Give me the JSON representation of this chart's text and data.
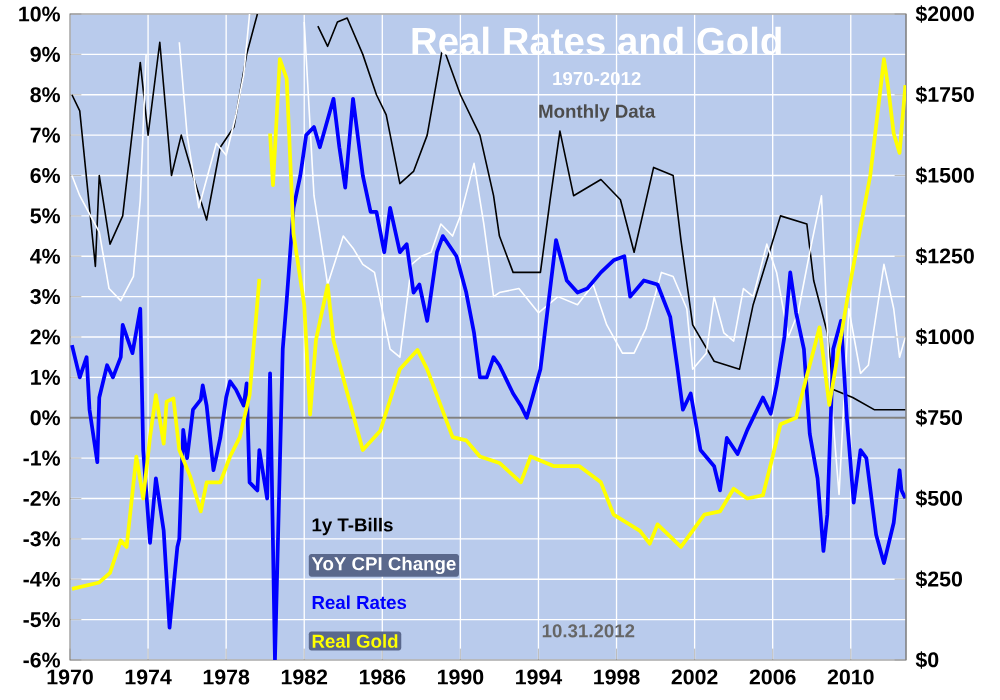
{
  "chart_data": {
    "type": "line",
    "title": "Real Rates and Gold",
    "subtitle": "1970-2012",
    "annotations": [
      "Monthly Data",
      "10.31.2012"
    ],
    "xlim": [
      1970,
      2012.83
    ],
    "xticks": [
      1970,
      1974,
      1978,
      1982,
      1986,
      1990,
      1994,
      1998,
      2002,
      2006,
      2010
    ],
    "ylim": [
      -6,
      10
    ],
    "yticks": [
      {
        "value": -6,
        "label": "-6%"
      },
      {
        "value": -5,
        "label": "-5%"
      },
      {
        "value": -4,
        "label": "-4%"
      },
      {
        "value": -3,
        "label": "-3%"
      },
      {
        "value": -2,
        "label": "-2%"
      },
      {
        "value": -1,
        "label": "-1%"
      },
      {
        "value": 0,
        "label": "0%"
      },
      {
        "value": 1,
        "label": "1%"
      },
      {
        "value": 2,
        "label": "2%"
      },
      {
        "value": 3,
        "label": "3%"
      },
      {
        "value": 4,
        "label": "4%"
      },
      {
        "value": 5,
        "label": "5%"
      },
      {
        "value": 6,
        "label": "6%"
      },
      {
        "value": 7,
        "label": "7%"
      },
      {
        "value": 8,
        "label": "8%"
      },
      {
        "value": 9,
        "label": "9%"
      },
      {
        "value": 10,
        "label": "10%"
      }
    ],
    "y2lim": [
      0,
      2000
    ],
    "y2ticks": [
      {
        "value": 0,
        "label": "$0"
      },
      {
        "value": 250,
        "label": "$250"
      },
      {
        "value": 500,
        "label": "$500"
      },
      {
        "value": 750,
        "label": "$750"
      },
      {
        "value": 1000,
        "label": "$1000"
      },
      {
        "value": 1250,
        "label": "$1250"
      },
      {
        "value": 1500,
        "label": "$1500"
      },
      {
        "value": 1750,
        "label": "$1750"
      },
      {
        "value": 2000,
        "label": "$2000"
      }
    ],
    "grid": true,
    "legend": "bottom left",
    "ref_lines": [
      {
        "axis": "y",
        "value": 0,
        "color": "#808080"
      }
    ],
    "series": [
      {
        "name": "1y T-Bills",
        "color": "#000000",
        "x": [
          1970.1,
          1970.5,
          1971.3,
          1971.5,
          1972.05,
          1972.7,
          1973.6,
          1974.0,
          1974.6,
          1975.2,
          1975.7,
          1976.3,
          1977.0,
          1977.7,
          1978.4,
          1979.05,
          1979.6,
          1980.5,
          1982.7,
          1983.2,
          1983.7,
          1984.2,
          1985.0,
          1985.7,
          1986.2,
          1986.9,
          1987.6,
          1988.3,
          1989.1,
          1990.0,
          1991.0,
          1991.7,
          1992.0,
          1992.7,
          1994.1,
          1994.6,
          1995.1,
          1995.8,
          1997.2,
          1998.2,
          1998.9,
          1999.9,
          2000.9,
          2001.3,
          2001.9,
          2003.0,
          2004.3,
          2005.0,
          2006.4,
          2007.75,
          2008.1,
          2008.8,
          2009.1,
          2010.1,
          2011.2,
          2012.8
        ],
        "values": [
          8.0,
          7.6,
          3.75,
          6.0,
          4.3,
          5.0,
          8.8,
          7.0,
          9.3,
          6.0,
          7.0,
          6.0,
          4.9,
          6.7,
          7.2,
          9.0,
          10,
          null,
          9.7,
          9.2,
          9.8,
          9.9,
          9.0,
          8.0,
          7.5,
          5.8,
          6.1,
          7.0,
          9.2,
          8.0,
          7.0,
          5.5,
          4.5,
          3.6,
          3.6,
          5.4,
          7.1,
          5.5,
          5.9,
          5.4,
          4.1,
          6.2,
          6.0,
          4.4,
          2.3,
          1.4,
          1.2,
          2.8,
          5.0,
          4.8,
          3.4,
          2.1,
          0.7,
          0.5,
          0.2,
          0.2
        ]
      },
      {
        "name": "YoY CPI Change",
        "color": "#ffffff",
        "x": [
          1970.1,
          1970.5,
          1971.5,
          1972.0,
          1972.6,
          1973.25,
          1973.6,
          1973.9,
          1974.5,
          1975.6,
          1976.0,
          1976.6,
          1977.5,
          1978.0,
          1978.5,
          1978.9,
          1979.2,
          1980.5,
          1982.0,
          1982.5,
          1983.2,
          1984.0,
          1984.5,
          1985.0,
          1985.6,
          1986.4,
          1986.9,
          1987.5,
          1988.0,
          1988.5,
          1989.0,
          1989.6,
          1990.0,
          1990.7,
          1991.2,
          1991.7,
          1992.0,
          1993.0,
          1994.0,
          1995.0,
          1996.0,
          1996.8,
          1997.5,
          1998.3,
          1998.9,
          1999.5,
          2000.3,
          2000.9,
          2001.6,
          2001.9,
          2002.6,
          2003.0,
          2003.5,
          2004.0,
          2004.5,
          2005.0,
          2005.7,
          2006.2,
          2006.8,
          2007.3,
          2007.9,
          2008.5,
          2008.9,
          2009.4,
          2009.9,
          2010.5,
          2010.9,
          2011.7,
          2012.2,
          2012.5,
          2012.8
        ],
        "values": [
          6.0,
          5.5,
          4.6,
          3.2,
          2.9,
          3.5,
          5.4,
          9.0,
          null,
          9.3,
          7.0,
          5.2,
          6.8,
          6.5,
          7.5,
          8.5,
          10,
          null,
          9.8,
          5.5,
          3.3,
          4.5,
          4.2,
          3.8,
          3.6,
          1.7,
          1.5,
          3.8,
          4.0,
          4.1,
          4.8,
          4.5,
          5.0,
          6.3,
          4.8,
          3.0,
          3.1,
          3.2,
          2.6,
          3.0,
          2.8,
          3.3,
          2.3,
          1.6,
          1.6,
          2.2,
          3.6,
          3.5,
          2.7,
          1.2,
          1.6,
          3.0,
          2.1,
          1.9,
          3.2,
          3.0,
          4.3,
          3.6,
          2.0,
          2.6,
          4.1,
          5.5,
          1.1,
          -1.9,
          2.7,
          1.1,
          1.3,
          3.8,
          2.7,
          1.5,
          2.0
        ]
      },
      {
        "name": "Real Rates",
        "color": "#0000ff",
        "x": [
          1970.1,
          1970.5,
          1970.85,
          1971.0,
          1971.4,
          1971.5,
          1971.9,
          1972.2,
          1972.6,
          1972.7,
          1973.2,
          1973.6,
          1973.75,
          1974.1,
          1974.4,
          1974.8,
          1975.1,
          1975.5,
          1975.6,
          1975.8,
          1976.0,
          1976.3,
          1976.7,
          1976.8,
          1977.0,
          1977.35,
          1977.7,
          1978.0,
          1978.2,
          1978.5,
          1978.9,
          1979.05,
          1979.2,
          1979.6,
          1979.7,
          1980.1,
          1980.25,
          1980.5,
          1980.9,
          1981.1,
          1981.45,
          1981.8,
          1982.1,
          1982.5,
          1982.8,
          1983.5,
          1983.8,
          1984.1,
          1984.5,
          1985.0,
          1985.4,
          1985.7,
          1986.1,
          1986.4,
          1986.9,
          1987.25,
          1987.6,
          1987.9,
          1988.3,
          1988.8,
          1989.1,
          1989.8,
          1990.3,
          1990.7,
          1991.0,
          1991.35,
          1991.7,
          1992.0,
          1992.7,
          1993.1,
          1993.4,
          1993.75,
          1994.1,
          1994.4,
          1994.9,
          1995.45,
          1996.0,
          1996.5,
          1997.2,
          1997.85,
          1998.4,
          1998.7,
          1999.4,
          2000.1,
          2000.75,
          2001.1,
          2001.4,
          2001.8,
          2002.3,
          2003.0,
          2003.3,
          2003.65,
          2004.2,
          2004.7,
          2005.2,
          2005.5,
          2005.9,
          2006.2,
          2006.6,
          2006.9,
          2007.2,
          2007.6,
          2007.9,
          2008.3,
          2008.6,
          2008.8,
          2009.1,
          2009.5,
          2009.8,
          2010.15,
          2010.5,
          2010.8,
          2011.3,
          2011.7,
          2012.2,
          2012.5,
          2012.6,
          2012.8
        ],
        "values": [
          1.8,
          1.0,
          1.5,
          0.2,
          -1.1,
          0.5,
          1.3,
          1.0,
          1.5,
          2.3,
          1.6,
          2.7,
          -0.8,
          -3.1,
          -1.5,
          -2.8,
          -5.2,
          -3.2,
          -3.0,
          -0.3,
          -1.0,
          0.2,
          0.45,
          0.8,
          0.3,
          -1.3,
          -0.5,
          0.5,
          0.9,
          0.7,
          0.3,
          0.85,
          -1.6,
          -1.8,
          -0.8,
          -2.0,
          1.1,
          -6.0,
          1.7,
          2.9,
          5.2,
          6.0,
          7.0,
          7.2,
          6.7,
          7.9,
          6.7,
          5.7,
          7.9,
          6.0,
          5.1,
          5.1,
          4.1,
          5.2,
          4.1,
          4.3,
          3.1,
          3.3,
          2.4,
          4.1,
          4.5,
          4.0,
          3.1,
          2.1,
          1.0,
          1.0,
          1.5,
          1.3,
          0.6,
          0.3,
          0.0,
          0.6,
          1.2,
          2.4,
          4.4,
          3.4,
          3.1,
          3.2,
          3.6,
          3.9,
          4.0,
          3.0,
          3.4,
          3.3,
          2.5,
          1.3,
          0.2,
          0.6,
          -0.8,
          -1.2,
          -1.8,
          -0.5,
          -0.9,
          -0.3,
          0.2,
          0.5,
          0.1,
          0.8,
          2.0,
          3.6,
          2.6,
          1.7,
          -0.4,
          -1.5,
          -3.3,
          -2.4,
          1.7,
          2.4,
          0.0,
          -2.1,
          -0.8,
          -1.0,
          -2.9,
          -3.6,
          -2.6,
          -1.3,
          -1.8,
          -2.0
        ]
      },
      {
        "name": "Real Gold",
        "color": "#ffff00",
        "axis": "y2",
        "x": [
          1970.1,
          1971.5,
          1972.05,
          1972.6,
          1972.9,
          1973.4,
          1973.75,
          1974.1,
          1974.4,
          1974.8,
          1974.95,
          1975.3,
          1975.6,
          1976.15,
          1976.7,
          1977.0,
          1977.7,
          1978.2,
          1978.7,
          1979.2,
          1979.7,
          1980.0,
          1980.25,
          1980.4,
          1980.75,
          1981.1,
          1981.45,
          1982.0,
          1982.3,
          1982.6,
          1983.2,
          1983.5,
          1984.1,
          1985.0,
          1985.9,
          1986.9,
          1987.8,
          1988.3,
          1989.6,
          1990.3,
          1991.0,
          1992.0,
          1993.1,
          1993.6,
          1994.8,
          1996.1,
          1997.2,
          1997.85,
          1999.2,
          1999.7,
          2000.1,
          2001.3,
          2002.5,
          2003.3,
          2004.0,
          2004.7,
          2005.5,
          2006.0,
          2006.4,
          2007.2,
          2007.75,
          2008.1,
          2008.4,
          2008.9,
          2009.8,
          2010.5,
          2011.0,
          2011.7,
          2011.9,
          2012.2,
          2012.5,
          2012.8
        ],
        "values": [
          220,
          240,
          270,
          370,
          350,
          630,
          500,
          690,
          820,
          670,
          800,
          810,
          650,
          570,
          460,
          550,
          550,
          630,
          690,
          820,
          1180,
          null,
          1630,
          1470,
          1860,
          1800,
          1320,
          1100,
          760,
          990,
          1160,
          990,
          850,
          650,
          710,
          900,
          960,
          900,
          690,
          680,
          630,
          610,
          550,
          630,
          600,
          600,
          550,
          450,
          400,
          360,
          420,
          350,
          450,
          460,
          530,
          500,
          510,
          630,
          730,
          750,
          880,
          960,
          1030,
          790,
          1110,
          1340,
          1500,
          1860,
          1780,
          1630,
          1570,
          1780
        ]
      }
    ]
  }
}
